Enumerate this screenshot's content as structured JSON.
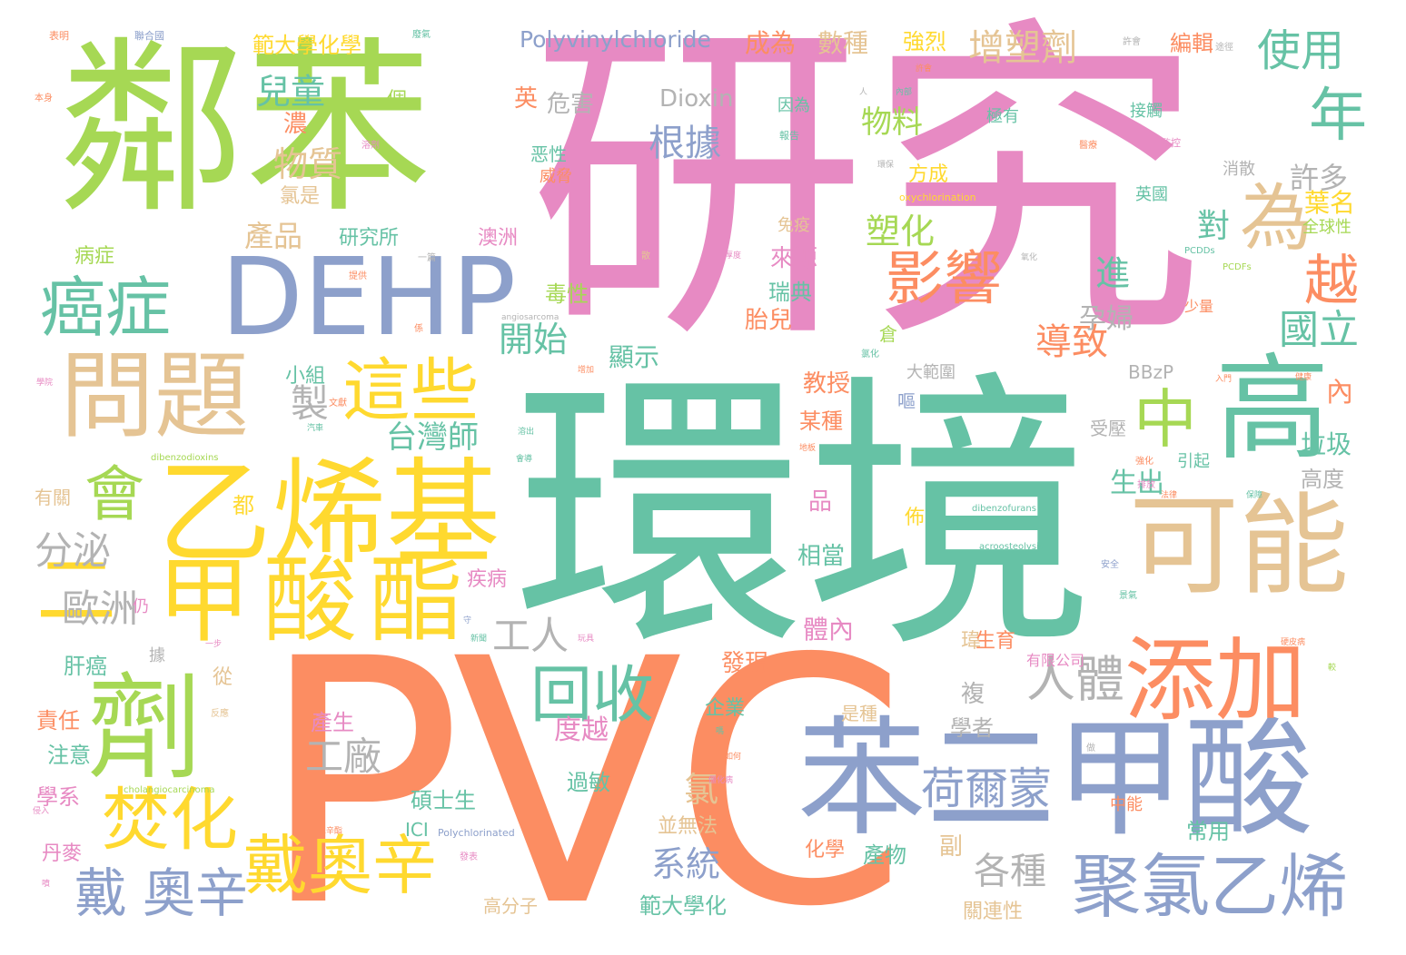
{
  "words": [
    {
      "text": "研究",
      "color": "#e78ac3"
    },
    {
      "text": "環境",
      "color": "#66c2a5"
    },
    {
      "text": "PVC",
      "color": "#fc8d62"
    },
    {
      "text": "鄰苯",
      "color": "#a6d854"
    },
    {
      "text": "DEHP",
      "color": "#8da0cb"
    },
    {
      "text": "乙烯基",
      "color": "#ffd92f"
    },
    {
      "text": "甲酸酯",
      "color": "#ffd92f"
    },
    {
      "text": "苯二甲酸",
      "color": "#8da0cb"
    },
    {
      "text": "問題",
      "color": "#e5c494"
    },
    {
      "text": "高",
      "color": "#66c2a5"
    },
    {
      "text": "可能",
      "color": "#e5c494"
    },
    {
      "text": "添加",
      "color": "#fc8d62"
    },
    {
      "text": "劑",
      "color": "#a6d854"
    },
    {
      "text": "癌症",
      "color": "#66c2a5"
    },
    {
      "text": "這些",
      "color": "#ffd92f"
    },
    {
      "text": "中",
      "color": "#a6d854"
    },
    {
      "text": "影響",
      "color": "#fc8d62"
    },
    {
      "text": "為",
      "color": "#e5c494"
    },
    {
      "text": "年",
      "color": "#66c2a5"
    },
    {
      "text": "越",
      "color": "#fc8d62"
    },
    {
      "text": "使用",
      "color": "#66c2a5"
    },
    {
      "text": "增塑劑",
      "color": "#e5c494"
    },
    {
      "text": "回收",
      "color": "#66c2a5"
    },
    {
      "text": "聚氯乙烯",
      "color": "#8da0cb"
    },
    {
      "text": "戴奧辛",
      "color": "#ffd92f"
    },
    {
      "text": "焚化",
      "color": "#ffd92f"
    },
    {
      "text": "戴",
      "color": "#8da0cb"
    },
    {
      "text": "奧辛",
      "color": "#8da0cb"
    },
    {
      "text": "荷爾蒙",
      "color": "#8da0cb"
    },
    {
      "text": "人體",
      "color": "#b3b3b3"
    },
    {
      "text": "會",
      "color": "#a6d854"
    },
    {
      "text": "二",
      "color": "#ffd92f"
    },
    {
      "text": "Polyvinylchloride",
      "color": "#8da0cb"
    },
    {
      "text": "各種",
      "color": "#b3b3b3"
    },
    {
      "text": "台灣師",
      "color": "#66c2a5"
    },
    {
      "text": "國立",
      "color": "#66c2a5"
    },
    {
      "text": "導致",
      "color": "#fc8d62"
    },
    {
      "text": "物料",
      "color": "#a6d854"
    },
    {
      "text": "根據",
      "color": "#8da0cb"
    },
    {
      "text": "兒童",
      "color": "#66c2a5"
    },
    {
      "text": "物質",
      "color": "#e5c494"
    },
    {
      "text": "開始",
      "color": "#66c2a5"
    },
    {
      "text": "工廠",
      "color": "#b3b3b3"
    },
    {
      "text": "工人",
      "color": "#b3b3b3"
    },
    {
      "text": "歐洲",
      "color": "#b3b3b3"
    },
    {
      "text": "分泌",
      "color": "#b3b3b3"
    },
    {
      "text": "系統",
      "color": "#8da0cb"
    },
    {
      "text": "塑化",
      "color": "#a6d854"
    },
    {
      "text": "產品",
      "color": "#e5c494"
    },
    {
      "text": "製",
      "color": "#b3b3b3"
    },
    {
      "text": "氯",
      "color": "#e5c494"
    },
    {
      "text": "進",
      "color": "#66c2a5"
    },
    {
      "text": "孕婦",
      "color": "#b3b3b3"
    },
    {
      "text": "範大學化學",
      "color": "#ffd92f"
    },
    {
      "text": "範大學化",
      "color": "#66c2a5"
    },
    {
      "text": "成為",
      "color": "#fc8d62"
    },
    {
      "text": "數種",
      "color": "#e5c494"
    },
    {
      "text": "強烈",
      "color": "#ffd92f"
    },
    {
      "text": "編輯",
      "color": "#fc8d62"
    },
    {
      "text": "一個",
      "color": "#a6d854"
    },
    {
      "text": "英",
      "color": "#fc8d62"
    },
    {
      "text": "危害",
      "color": "#b3b3b3"
    },
    {
      "text": "Dioxin",
      "color": "#b3b3b3"
    },
    {
      "text": "濃",
      "color": "#fc8d62"
    },
    {
      "text": "氯是",
      "color": "#e5c494"
    },
    {
      "text": "研究所",
      "color": "#66c2a5"
    },
    {
      "text": "澳洲",
      "color": "#e78ac3"
    },
    {
      "text": "病症",
      "color": "#a6d854"
    },
    {
      "text": "來源",
      "color": "#e78ac3"
    },
    {
      "text": "瑞典",
      "color": "#66c2a5"
    },
    {
      "text": "毒性",
      "color": "#a6d854"
    },
    {
      "text": "胎兒",
      "color": "#fc8d62"
    },
    {
      "text": "顯示",
      "color": "#66c2a5"
    },
    {
      "text": "小組",
      "color": "#66c2a5"
    },
    {
      "text": "教授",
      "color": "#fc8d62"
    },
    {
      "text": "某種",
      "color": "#fc8d62"
    },
    {
      "text": "品",
      "color": "#e78ac3"
    },
    {
      "text": "相當",
      "color": "#66c2a5"
    },
    {
      "text": "體內",
      "color": "#e78ac3"
    },
    {
      "text": "發現",
      "color": "#fc8d62"
    },
    {
      "text": "複",
      "color": "#b3b3b3"
    },
    {
      "text": "學者",
      "color": "#b3b3b3"
    },
    {
      "text": "許多",
      "color": "#b3b3b3"
    },
    {
      "text": "葉名",
      "color": "#ffd92f"
    },
    {
      "text": "對",
      "color": "#66c2a5"
    },
    {
      "text": "內",
      "color": "#fc8d62"
    },
    {
      "text": "垃圾",
      "color": "#66c2a5"
    },
    {
      "text": "高度",
      "color": "#b3b3b3"
    },
    {
      "text": "生出",
      "color": "#66c2a5"
    },
    {
      "text": "肝癌",
      "color": "#66c2a5"
    },
    {
      "text": "從",
      "color": "#e5c494"
    },
    {
      "text": "責任",
      "color": "#fc8d62"
    },
    {
      "text": "注意",
      "color": "#66c2a5"
    },
    {
      "text": "學系",
      "color": "#e78ac3"
    },
    {
      "text": "丹麥",
      "color": "#e78ac3"
    },
    {
      "text": "產生",
      "color": "#e78ac3"
    },
    {
      "text": "企業",
      "color": "#66c2a5"
    },
    {
      "text": "度越",
      "color": "#e78ac3"
    },
    {
      "text": "過敏",
      "color": "#66c2a5"
    },
    {
      "text": "碩士生",
      "color": "#66c2a5"
    },
    {
      "text": "ICI",
      "color": "#66c2a5"
    },
    {
      "text": "高分子",
      "color": "#e5c494"
    },
    {
      "text": "並無法",
      "color": "#e5c494"
    },
    {
      "text": "化學",
      "color": "#fc8d62"
    },
    {
      "text": "產物",
      "color": "#66c2a5"
    },
    {
      "text": "副",
      "color": "#e5c494"
    },
    {
      "text": "關連性",
      "color": "#e5c494"
    },
    {
      "text": "常用",
      "color": "#66c2a5"
    },
    {
      "text": "有關",
      "color": "#e5c494"
    },
    {
      "text": "疾病",
      "color": "#e78ac3"
    },
    {
      "text": "仍",
      "color": "#e78ac3"
    },
    {
      "text": "據",
      "color": "#b3b3b3"
    },
    {
      "text": "瑋",
      "color": "#e5c494"
    },
    {
      "text": "生育",
      "color": "#fc8d62"
    },
    {
      "text": "有限公司",
      "color": "#e78ac3"
    },
    {
      "text": "是種",
      "color": "#e5c494"
    },
    {
      "text": "倉",
      "color": "#a6d854"
    },
    {
      "text": "大範圍",
      "color": "#b3b3b3"
    },
    {
      "text": "嘔",
      "color": "#8da0cb"
    },
    {
      "text": "BBzP",
      "color": "#b3b3b3"
    },
    {
      "text": "受壓",
      "color": "#b3b3b3"
    },
    {
      "text": "引起",
      "color": "#66c2a5"
    },
    {
      "text": "全球性",
      "color": "#a6d854"
    },
    {
      "text": "英國",
      "color": "#66c2a5"
    },
    {
      "text": "消散",
      "color": "#b3b3b3"
    },
    {
      "text": "接觸",
      "color": "#66c2a5"
    },
    {
      "text": "極有",
      "color": "#66c2a5"
    },
    {
      "text": "方成",
      "color": "#ffd92f"
    },
    {
      "text": "恶性",
      "color": "#66c2a5"
    },
    {
      "text": "威脅",
      "color": "#fc8d62"
    },
    {
      "text": "免疫",
      "color": "#e5c494"
    },
    {
      "text": "因為",
      "color": "#66c2a5"
    },
    {
      "text": "中能",
      "color": "#fc8d62"
    },
    {
      "text": "少量",
      "color": "#fc8d62"
    },
    {
      "text": "佈",
      "color": "#ffd92f"
    },
    {
      "text": "都",
      "color": "#ffd92f"
    },
    {
      "text": "oxychlorination",
      "color": "#ffd92f"
    },
    {
      "text": "dibenzodioxins",
      "color": "#a6d854"
    },
    {
      "text": "dibenzofurans",
      "color": "#66c2a5"
    },
    {
      "text": "acroosteolysis",
      "color": "#66c2a5"
    },
    {
      "text": "angiosarcoma",
      "color": "#b3b3b3"
    },
    {
      "text": "cholangiocarcinoma",
      "color": "#a6d854"
    },
    {
      "text": "Polychlorinated",
      "color": "#8da0cb"
    },
    {
      "text": "PCDDs",
      "color": "#66c2a5"
    },
    {
      "text": "PCDFs",
      "color": "#a6d854"
    },
    {
      "text": "表明",
      "color": "#fc8d62"
    },
    {
      "text": "聯合國",
      "color": "#8da0cb"
    },
    {
      "text": "廢氣",
      "color": "#66c2a5"
    },
    {
      "text": "許會",
      "color": "#b3b3b3"
    },
    {
      "text": "途徑",
      "color": "#b3b3b3"
    },
    {
      "text": "本身",
      "color": "#fc8d62"
    },
    {
      "text": "溶劑",
      "color": "#e78ac3"
    },
    {
      "text": "報告",
      "color": "#66c2a5"
    },
    {
      "text": "許會",
      "color": "#fc8d62"
    },
    {
      "text": "內部",
      "color": "#66c2a5"
    },
    {
      "text": "人",
      "color": "#b3b3b3"
    },
    {
      "text": "醫療",
      "color": "#fc8d62"
    },
    {
      "text": "監控",
      "color": "#e78ac3"
    },
    {
      "text": "環保",
      "color": "#b3b3b3"
    },
    {
      "text": "提供",
      "color": "#fc8d62"
    },
    {
      "text": "一篇",
      "color": "#b3b3b3"
    },
    {
      "text": "散",
      "color": "#e5c494"
    },
    {
      "text": "厚度",
      "color": "#e78ac3"
    },
    {
      "text": "氧化",
      "color": "#b3b3b3"
    },
    {
      "text": "係",
      "color": "#fc8d62"
    },
    {
      "text": "氯化",
      "color": "#66c2a5"
    },
    {
      "text": "增加",
      "color": "#fc8d62"
    },
    {
      "text": "文獻",
      "color": "#fc8d62"
    },
    {
      "text": "溶出",
      "color": "#66c2a5"
    },
    {
      "text": "學院",
      "color": "#e78ac3"
    },
    {
      "text": "汽車",
      "color": "#66c2a5"
    },
    {
      "text": "會導",
      "color": "#66c2a5"
    },
    {
      "text": "地板",
      "color": "#fc8d62"
    },
    {
      "text": "入門",
      "color": "#fc8d62"
    },
    {
      "text": "健康",
      "color": "#fc8d62"
    },
    {
      "text": "強化",
      "color": "#fc8d62"
    },
    {
      "text": "法律",
      "color": "#fc8d62"
    },
    {
      "text": "保障",
      "color": "#66c2a5"
    },
    {
      "text": "排放",
      "color": "#e78ac3"
    },
    {
      "text": "安全",
      "color": "#8da0cb"
    },
    {
      "text": "景氣",
      "color": "#66c2a5"
    },
    {
      "text": "硬皮病",
      "color": "#fc8d62"
    },
    {
      "text": "較",
      "color": "#a6d854"
    },
    {
      "text": "守",
      "color": "#8da0cb"
    },
    {
      "text": "新聞",
      "color": "#66c2a5"
    },
    {
      "text": "玩具",
      "color": "#e78ac3"
    },
    {
      "text": "一步",
      "color": "#e78ac3"
    },
    {
      "text": "反應",
      "color": "#e5c494"
    },
    {
      "text": "如何",
      "color": "#fc8d62"
    },
    {
      "text": "發表",
      "color": "#e78ac3"
    },
    {
      "text": "侵入",
      "color": "#e78ac3"
    },
    {
      "text": "噴",
      "color": "#e78ac3"
    },
    {
      "text": "二辛酯",
      "color": "#fc8d62"
    },
    {
      "text": "做",
      "color": "#b3b3b3"
    },
    {
      "text": "嗎",
      "color": "#66c2a5"
    },
    {
      "text": "僵化病",
      "color": "#e78ac3"
    }
  ]
}
